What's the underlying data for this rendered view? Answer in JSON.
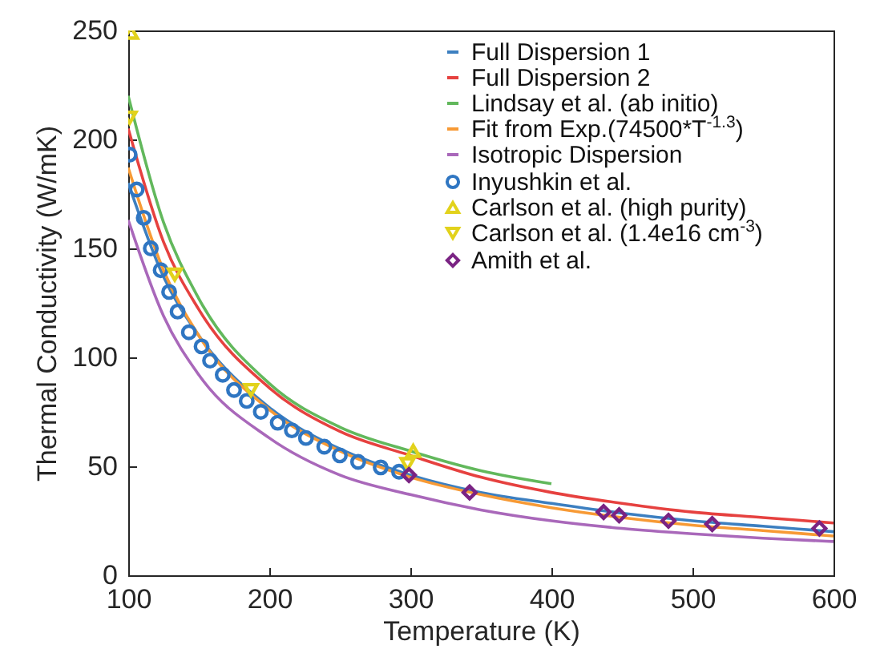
{
  "chart_data": {
    "type": "line",
    "xlabel": "Temperature (K)",
    "ylabel": "Thermal Conductivity (W/mK)",
    "xlim": [
      100,
      600
    ],
    "ylim": [
      0,
      250
    ],
    "xticks": [
      100,
      200,
      300,
      400,
      500,
      600
    ],
    "yticks": [
      0,
      50,
      100,
      150,
      200,
      250
    ],
    "grid": false,
    "legend": "top right",
    "line_style": "solid",
    "series": [
      {
        "name": "Full Dispersion 1",
        "color": "#3c7fc0",
        "x": [
          100,
          125,
          150,
          200,
          250,
          300,
          350,
          400,
          450,
          500,
          550,
          600
        ],
        "values": [
          180,
          137,
          110,
          77,
          58,
          46,
          38,
          33,
          28.5,
          25,
          22.5,
          20
        ]
      },
      {
        "name": "Full Dispersion 2",
        "color": "#e6413f",
        "x": [
          100,
          125,
          150,
          200,
          250,
          300,
          350,
          400,
          450,
          500,
          550,
          600
        ],
        "values": [
          205,
          153,
          122,
          86,
          66,
          55,
          45,
          38,
          33,
          29,
          26.5,
          24
        ]
      },
      {
        "name": "Lindsay et al. (ab initio)",
        "color": "#62b85c",
        "x": [
          100,
          125,
          150,
          200,
          250,
          300,
          350,
          400
        ],
        "values": [
          220,
          162,
          127,
          88,
          68,
          57,
          48,
          42
        ]
      },
      {
        "name": "Fit from Exp.(74500*T$^{-1.3}$)",
        "color": "#f79a35",
        "x": [
          100,
          125,
          150,
          200,
          250,
          300,
          350,
          400,
          450,
          500,
          550,
          600
        ],
        "values": [
          187,
          140,
          110,
          76,
          57,
          45,
          37,
          31,
          26.5,
          23,
          20.5,
          18
        ]
      },
      {
        "name": "Isotropic Dispersion",
        "color": "#a968ba",
        "x": [
          100,
          125,
          150,
          200,
          250,
          300,
          350,
          400,
          450,
          500,
          550,
          600
        ],
        "values": [
          163,
          119,
          92,
          63,
          46,
          37,
          30,
          25,
          21.5,
          19,
          17,
          15.5
        ]
      },
      {
        "name": "Inyushkin et al.",
        "type": "scatter",
        "marker": "circle",
        "color": "#2f76c2",
        "x": [
          101,
          106,
          111,
          116,
          123,
          129,
          135,
          143,
          152,
          158,
          167,
          175,
          184,
          194,
          206,
          216,
          226,
          239,
          250,
          263,
          279,
          292
        ],
        "values": [
          193,
          177,
          164,
          150,
          140,
          130,
          121,
          111.5,
          105,
          98.5,
          92,
          85,
          80,
          75,
          70,
          66.5,
          63,
          59,
          55,
          52,
          49.5,
          47.5
        ]
      },
      {
        "name": "Carlson et al. (high purity)",
        "type": "scatter",
        "marker": "triangle",
        "color": "#e2d21c",
        "x": [
          102,
          302
        ],
        "values": [
          249,
          57
        ]
      },
      {
        "name": "Carlson et al. (1.4e16 cm$^{-3}$)",
        "type": "scatter",
        "marker": "triangle-down",
        "color": "#e2d21c",
        "x": [
          101,
          133,
          187,
          298
        ],
        "values": [
          210,
          138,
          85,
          51
        ]
      },
      {
        "name": "Amith et al.",
        "type": "scatter",
        "marker": "diamond",
        "color": "#7a2383",
        "x": [
          299,
          342,
          437,
          448,
          483,
          514,
          590
        ],
        "values": [
          46,
          38,
          29,
          27.5,
          25,
          23.5,
          21.5
        ]
      }
    ]
  }
}
